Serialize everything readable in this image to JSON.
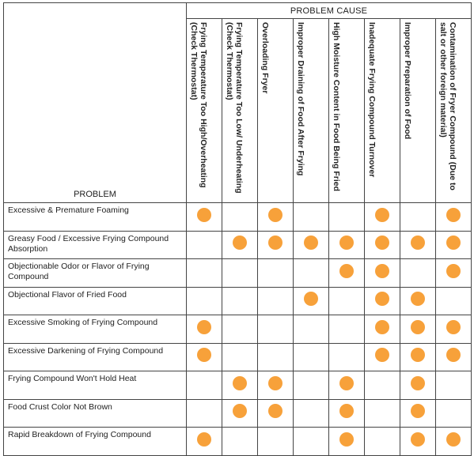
{
  "header": {
    "cause_title": "PROBLEM CAUSE",
    "problem_label": "PROBLEM"
  },
  "causes": [
    "Frying Temperature Too High/Overheating (Check Thermostat)",
    "Frying Temperature Too Low/ Underheating (Check Thermostat)",
    "Overloading Fryer",
    "Improper Draining of Food After Frying",
    "High Moisture Content in Food Being Fried",
    "Inadequate Frying Compound Turnover",
    "Improper Preparation of Food",
    "Contamination of Fryer Compound (Due to salt or other foreign material)"
  ],
  "rows": [
    {
      "problem": "Excessive & Premature Foaming",
      "marks": [
        1,
        0,
        1,
        0,
        0,
        1,
        0,
        1
      ]
    },
    {
      "problem": "Greasy Food / Excessive Frying Compound Absorption",
      "marks": [
        0,
        1,
        1,
        1,
        1,
        1,
        1,
        1
      ]
    },
    {
      "problem": "Objectionable Odor or Flavor of Frying Compound",
      "marks": [
        0,
        0,
        0,
        0,
        1,
        1,
        0,
        1
      ]
    },
    {
      "problem": "Objectional Flavor of Fried Food",
      "marks": [
        0,
        0,
        0,
        1,
        0,
        1,
        1,
        0
      ]
    },
    {
      "problem": "Excessive Smoking of Frying Compound",
      "marks": [
        1,
        0,
        0,
        0,
        0,
        1,
        1,
        1
      ]
    },
    {
      "problem": "Excessive Darkening of Frying Compound",
      "marks": [
        1,
        0,
        0,
        0,
        0,
        1,
        1,
        1
      ]
    },
    {
      "problem": "Frying Compound Won't Hold Heat",
      "marks": [
        0,
        1,
        1,
        0,
        1,
        0,
        1,
        0
      ]
    },
    {
      "problem": "Food Crust Color Not Brown",
      "marks": [
        0,
        1,
        1,
        0,
        1,
        0,
        1,
        0
      ]
    },
    {
      "problem": "Rapid Breakdown of Frying Compound",
      "marks": [
        1,
        0,
        0,
        0,
        1,
        0,
        1,
        1
      ]
    }
  ],
  "colors": {
    "mark": "#f7a13a",
    "border": "#444444"
  },
  "icons": {
    "mark": "filled-orange-circle"
  }
}
